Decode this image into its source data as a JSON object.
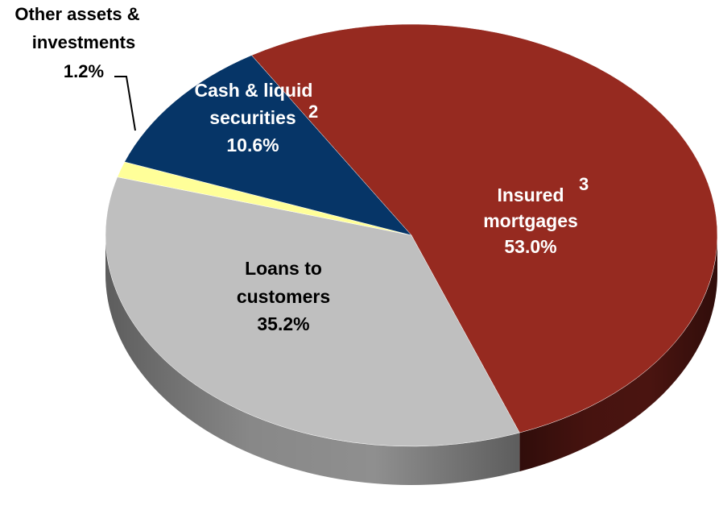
{
  "chart_data": {
    "type": "pie",
    "title": "",
    "style": "3d-tilted",
    "slices": [
      {
        "key": "insured",
        "label_lines": [
          "Insured",
          "mortgages"
        ],
        "footnote": "3",
        "value": 53.0,
        "value_text": "53.0%",
        "color": "#962a20",
        "side_color": "#4a1410",
        "label_color": "#ffffff"
      },
      {
        "key": "loans",
        "label_lines": [
          "Loans to",
          "customers"
        ],
        "footnote": "",
        "value": 35.2,
        "value_text": "35.2%",
        "color": "#bfbfbf",
        "side_color": "#8f8f8f",
        "label_color": "#000000"
      },
      {
        "key": "other",
        "label_lines": [
          "Other assets &",
          "investments"
        ],
        "footnote": "",
        "value": 1.2,
        "value_text": "1.2%",
        "color": "#ffff99",
        "side_color": "#c8c870",
        "label_color": "#000000"
      },
      {
        "key": "cash",
        "label_lines": [
          "Cash & liquid",
          "securities"
        ],
        "footnote": "2",
        "value": 10.6,
        "value_text": "10.6%",
        "color": "#063567",
        "side_color": "#031b36",
        "label_color": "#ffffff"
      }
    ]
  }
}
